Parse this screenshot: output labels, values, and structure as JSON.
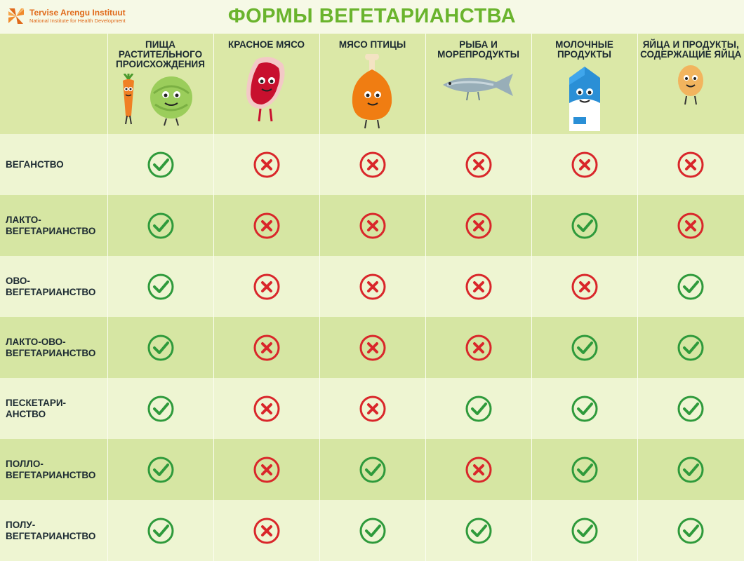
{
  "header": {
    "logo_name": "Tervise Arengu Instituut",
    "logo_sub": "National Institute for Health Development",
    "title": "ФОРМЫ ВЕГЕТАРИАНСТВА"
  },
  "colors": {
    "title_green": "#6ab42d",
    "yes_green": "#2e9a3b",
    "no_red": "#d9262a",
    "logo_orange": "#e06a1b"
  },
  "columns": [
    {
      "label": "ПИЩА РАСТИТЕЛЬНОГО ПРОИСХОЖДЕНИЯ",
      "icon": "carrot-cabbage-icon"
    },
    {
      "label": "КРАСНОЕ МЯСО",
      "icon": "red-meat-icon"
    },
    {
      "label": "МЯСО ПТИЦЫ",
      "icon": "chicken-leg-icon"
    },
    {
      "label": "РЫБА И МОРЕПРОДУКТЫ",
      "icon": "fish-icon"
    },
    {
      "label": "МОЛОЧНЫЕ ПРОДУКТЫ",
      "icon": "milk-carton-icon"
    },
    {
      "label": "ЯЙЦА И ПРОДУКТЫ, СОДЕРЖАЩИЕ ЯЙЦА",
      "icon": "egg-icon"
    }
  ],
  "rows": [
    {
      "label": "ВЕГАНСТВО",
      "values": [
        "yes",
        "no",
        "no",
        "no",
        "no",
        "no"
      ]
    },
    {
      "label": "ЛАКТО-\nВЕГЕТАРИАНСТВО",
      "values": [
        "yes",
        "no",
        "no",
        "no",
        "yes",
        "no"
      ]
    },
    {
      "label": "ОВО-\nВЕГЕТАРИАНСТВО",
      "values": [
        "yes",
        "no",
        "no",
        "no",
        "no",
        "yes"
      ]
    },
    {
      "label": "ЛАКТО-ОВО-\nВЕГЕТАРИАНСТВО",
      "values": [
        "yes",
        "no",
        "no",
        "no",
        "yes",
        "yes"
      ]
    },
    {
      "label": "ПЕСКЕТАРИ-\nАНСТВО",
      "values": [
        "yes",
        "no",
        "no",
        "yes",
        "yes",
        "yes"
      ]
    },
    {
      "label": "ПОЛЛО-\nВЕГЕТАРИАНСТВО",
      "values": [
        "yes",
        "no",
        "yes",
        "no",
        "yes",
        "yes"
      ]
    },
    {
      "label": "ПОЛУ-\nВЕГЕТАРИАНСТВО",
      "values": [
        "yes",
        "no",
        "yes",
        "yes",
        "yes",
        "yes"
      ]
    }
  ]
}
